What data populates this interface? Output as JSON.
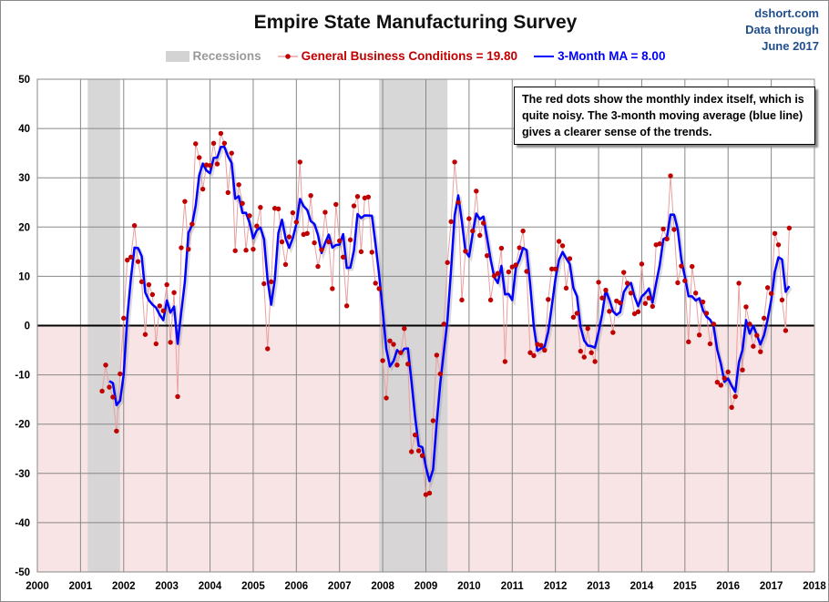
{
  "chart_data": {
    "type": "line",
    "title": "Empire State Manufacturing Survey",
    "source_lines": [
      "dshort.com",
      "Data through",
      "June 2017"
    ],
    "legend": {
      "recessions": "Recessions",
      "monthly": "General Business Conditions = 19.80",
      "ma": "3-Month MA = 8.00",
      "placement": "top"
    },
    "annotation": "The red dots show the monthly  index itself, which is quite noisy. The 3-month moving average (blue line) gives a clearer sense of the trends.",
    "xlim": [
      2000,
      2018
    ],
    "ylim": [
      -50,
      50
    ],
    "x_ticks": [
      "2000",
      "2001",
      "2002",
      "2003",
      "2004",
      "2005",
      "2006",
      "2007",
      "2008",
      "2009",
      "2010",
      "2011",
      "2012",
      "2013",
      "2014",
      "2015",
      "2016",
      "2017",
      "2018"
    ],
    "y_ticks": [
      50,
      40,
      30,
      20,
      10,
      0,
      -10,
      -20,
      -30,
      -40,
      -50
    ],
    "grid": true,
    "colors": {
      "monthly": "#c00000",
      "monthly_line": "#e8a0a0",
      "ma": "#0000ff",
      "recession": "#d3d3d3",
      "negative_zone": "#f8e4e4"
    },
    "recessions": [
      [
        "2001-03",
        "2001-11"
      ],
      [
        "2007-12",
        "2009-06"
      ]
    ],
    "series": [
      {
        "name": "General Business Conditions",
        "monthly_by_year": {
          "2001": [
            null,
            null,
            null,
            null,
            null,
            null,
            -13.3,
            -8.0,
            -12.5,
            -14.5,
            -21.4,
            -9.8
          ],
          "2002": [
            1.5,
            13.3,
            13.9,
            20.3,
            13.0,
            8.9,
            -1.8,
            8.3,
            6.3,
            -3.7,
            4.0,
            3.0
          ],
          "2003": [
            8.3,
            -3.4,
            6.7,
            -14.4,
            15.8,
            25.2,
            15.5,
            20.6,
            36.9,
            34.1,
            27.7,
            32.6
          ],
          "2004": [
            32.5,
            37.0,
            32.8,
            39.0,
            37.0,
            27.0,
            35.0,
            15.2,
            28.6,
            24.8,
            15.3,
            22.3
          ],
          "2005": [
            15.5,
            20.2,
            24.0,
            8.5,
            -4.7,
            8.9,
            23.8,
            23.7,
            17.0,
            12.4,
            18.0,
            22.9
          ],
          "2006": [
            21.0,
            33.2,
            18.5,
            18.7,
            26.4,
            16.8,
            12.0,
            15.4,
            23.0,
            17.0,
            7.5,
            24.6
          ],
          "2007": [
            17.2,
            13.9,
            4.0,
            17.4,
            24.3,
            26.2,
            15.0,
            25.9,
            26.1,
            14.9,
            8.6,
            7.5
          ],
          "2008": [
            -7.1,
            -14.7,
            -3.1,
            -3.8,
            -8.0,
            -5.5,
            -0.6,
            -7.8,
            -25.6,
            -22.2,
            -25.4,
            -26.4
          ],
          "2009": [
            -34.3,
            -34.0,
            -19.3,
            -6.0,
            -9.8,
            0.3,
            12.8,
            21.1,
            33.2,
            25.0,
            5.2,
            15.1
          ],
          "2010": [
            21.7,
            19.2,
            27.3,
            18.3,
            20.8,
            14.2,
            5.2,
            10.1,
            10.6,
            15.7,
            -7.3,
            10.9
          ],
          "2011": [
            11.9,
            12.3,
            15.8,
            19.2,
            11.0,
            -5.5,
            -6.1,
            -3.8,
            -4.0,
            -5.0,
            5.3,
            11.5
          ],
          "2012": [
            11.5,
            17.1,
            16.2,
            7.6,
            13.6,
            1.7,
            2.5,
            -5.2,
            -6.4,
            -0.6,
            -5.5,
            -7.3
          ],
          "2013": [
            8.8,
            5.6,
            7.2,
            2.9,
            -1.4,
            5.0,
            4.6,
            10.8,
            8.6,
            6.6,
            2.4,
            2.8
          ],
          "2014": [
            12.5,
            4.5,
            5.6,
            3.9,
            16.4,
            16.6,
            19.6,
            17.6,
            30.4,
            19.5,
            8.7,
            12.1
          ],
          "2015": [
            9.1,
            -3.3,
            12.0,
            6.6,
            -1.9,
            4.8,
            2.5,
            -3.7,
            0.3,
            -11.5,
            -12.1,
            -10.7
          ],
          "2016": [
            -9.4,
            -16.6,
            -14.4,
            8.6,
            -9.0,
            3.8,
            0.3,
            -4.2,
            -2.0,
            -5.3,
            1.5,
            7.7
          ],
          "2017": [
            6.5,
            18.7,
            16.4,
            5.2,
            -1.0,
            19.8,
            null,
            null,
            null,
            null,
            null,
            null
          ]
        }
      },
      {
        "name": "3-Month MA",
        "derived": "3-month moving average of General Business Conditions"
      }
    ]
  }
}
